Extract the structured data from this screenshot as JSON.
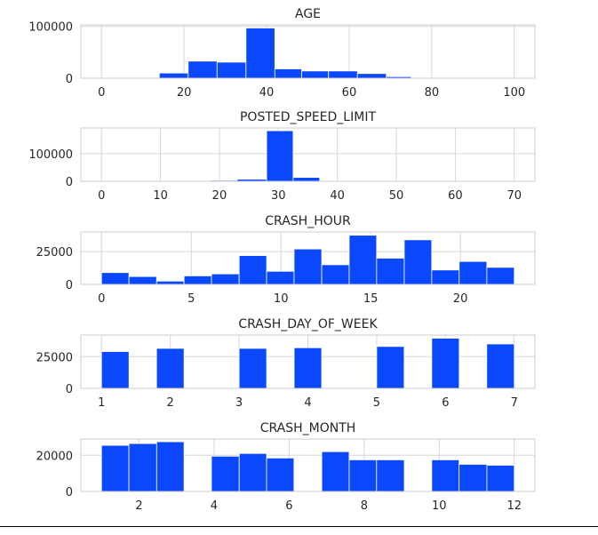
{
  "chart_data": [
    {
      "type": "bar",
      "title": "AGE",
      "xlim": [
        -5,
        105
      ],
      "ylim": [
        0,
        103000
      ],
      "xticks": [
        0,
        20,
        40,
        60,
        80,
        100
      ],
      "yticks": [
        0,
        100000
      ],
      "ytick_labels": [
        "0",
        "100000"
      ],
      "bins": [
        {
          "x0": 14,
          "x1": 21,
          "value": 10000
        },
        {
          "x0": 21,
          "x1": 28,
          "value": 33000
        },
        {
          "x0": 28,
          "x1": 35,
          "value": 31000
        },
        {
          "x0": 35,
          "x1": 42,
          "value": 97000
        },
        {
          "x0": 42,
          "x1": 48.5,
          "value": 18000
        },
        {
          "x0": 48.5,
          "x1": 55,
          "value": 14000
        },
        {
          "x0": 55,
          "x1": 62,
          "value": 14000
        },
        {
          "x0": 62,
          "x1": 69,
          "value": 9000
        },
        {
          "x0": 69,
          "x1": 75,
          "value": 3000
        }
      ],
      "grid": true
    },
    {
      "type": "bar",
      "title": "POSTED_SPEED_LIMIT",
      "xlim": [
        -3.5,
        73.5
      ],
      "ylim": [
        0,
        193000
      ],
      "xticks": [
        0,
        10,
        20,
        30,
        40,
        50,
        60,
        70
      ],
      "yticks": [
        0,
        100000
      ],
      "ytick_labels": [
        "0",
        "100000"
      ],
      "bins": [
        {
          "x0": 14,
          "x1": 18.5,
          "value": 1500
        },
        {
          "x0": 18.5,
          "x1": 23,
          "value": 3500
        },
        {
          "x0": 23,
          "x1": 28,
          "value": 7500
        },
        {
          "x0": 28,
          "x1": 32.5,
          "value": 183000
        },
        {
          "x0": 32.5,
          "x1": 37,
          "value": 14000
        }
      ],
      "grid": true
    },
    {
      "type": "bar",
      "title": "CRASH_HOUR",
      "xlim": [
        -1.15,
        24.15
      ],
      "ylim": [
        0,
        40000
      ],
      "xticks": [
        0,
        5,
        10,
        15,
        20
      ],
      "yticks": [
        0,
        25000
      ],
      "ytick_labels": [
        "0",
        "25000"
      ],
      "bins": [
        {
          "x0": 0,
          "x1": 1.53,
          "value": 9000
        },
        {
          "x0": 1.53,
          "x1": 3.07,
          "value": 6000
        },
        {
          "x0": 3.07,
          "x1": 4.6,
          "value": 2500
        },
        {
          "x0": 4.6,
          "x1": 6.13,
          "value": 6500
        },
        {
          "x0": 6.13,
          "x1": 7.67,
          "value": 8000
        },
        {
          "x0": 7.67,
          "x1": 9.2,
          "value": 22000
        },
        {
          "x0": 9.2,
          "x1": 10.73,
          "value": 10000
        },
        {
          "x0": 10.73,
          "x1": 12.27,
          "value": 27000
        },
        {
          "x0": 12.27,
          "x1": 13.8,
          "value": 15000
        },
        {
          "x0": 13.8,
          "x1": 15.33,
          "value": 37500
        },
        {
          "x0": 15.33,
          "x1": 16.87,
          "value": 20000
        },
        {
          "x0": 16.87,
          "x1": 18.4,
          "value": 34000
        },
        {
          "x0": 18.4,
          "x1": 19.93,
          "value": 11000
        },
        {
          "x0": 19.93,
          "x1": 21.47,
          "value": 17500
        },
        {
          "x0": 21.47,
          "x1": 23,
          "value": 13000
        }
      ],
      "grid": true
    },
    {
      "type": "bar",
      "title": "CRASH_DAY_OF_WEEK",
      "xlim": [
        0.7,
        7.3
      ],
      "ylim": [
        0,
        42000
      ],
      "xticks": [
        1,
        2,
        3,
        4,
        5,
        6,
        7
      ],
      "yticks": [
        0,
        25000
      ],
      "ytick_labels": [
        "0",
        "25000"
      ],
      "bins": [
        {
          "x0": 1,
          "x1": 1.4,
          "value": 29000
        },
        {
          "x0": 1.8,
          "x1": 2.2,
          "value": 31500
        },
        {
          "x0": 3,
          "x1": 3.4,
          "value": 31500
        },
        {
          "x0": 3.8,
          "x1": 4.2,
          "value": 32000
        },
        {
          "x0": 5,
          "x1": 5.4,
          "value": 33000
        },
        {
          "x0": 5.8,
          "x1": 6.2,
          "value": 39500
        },
        {
          "x0": 6.6,
          "x1": 7,
          "value": 35000
        }
      ],
      "grid": true
    },
    {
      "type": "bar",
      "title": "CRASH_MONTH",
      "xlim": [
        0.45,
        12.55
      ],
      "ylim": [
        0,
        29000
      ],
      "xticks": [
        2,
        4,
        6,
        8,
        10,
        12
      ],
      "yticks": [
        0,
        20000
      ],
      "ytick_labels": [
        "0",
        "20000"
      ],
      "bins": [
        {
          "x0": 1,
          "x1": 1.73,
          "value": 25500
        },
        {
          "x0": 1.73,
          "x1": 2.47,
          "value": 26500
        },
        {
          "x0": 2.47,
          "x1": 3.2,
          "value": 27500
        },
        {
          "x0": 3.93,
          "x1": 4.67,
          "value": 19500
        },
        {
          "x0": 4.67,
          "x1": 5.4,
          "value": 21000
        },
        {
          "x0": 5.4,
          "x1": 6.13,
          "value": 18500
        },
        {
          "x0": 6.87,
          "x1": 7.6,
          "value": 22000
        },
        {
          "x0": 7.6,
          "x1": 8.33,
          "value": 17500
        },
        {
          "x0": 8.33,
          "x1": 9.07,
          "value": 17500
        },
        {
          "x0": 9.8,
          "x1": 10.53,
          "value": 17500
        },
        {
          "x0": 10.53,
          "x1": 11.27,
          "value": 15000
        },
        {
          "x0": 11.27,
          "x1": 12,
          "value": 14500
        }
      ],
      "grid": true
    }
  ],
  "colors": {
    "bar": "#0b48fb",
    "bar_edge": "#ffffff",
    "grid": "#d7d7d7",
    "frame": "#cccccc",
    "text": "#262626"
  }
}
